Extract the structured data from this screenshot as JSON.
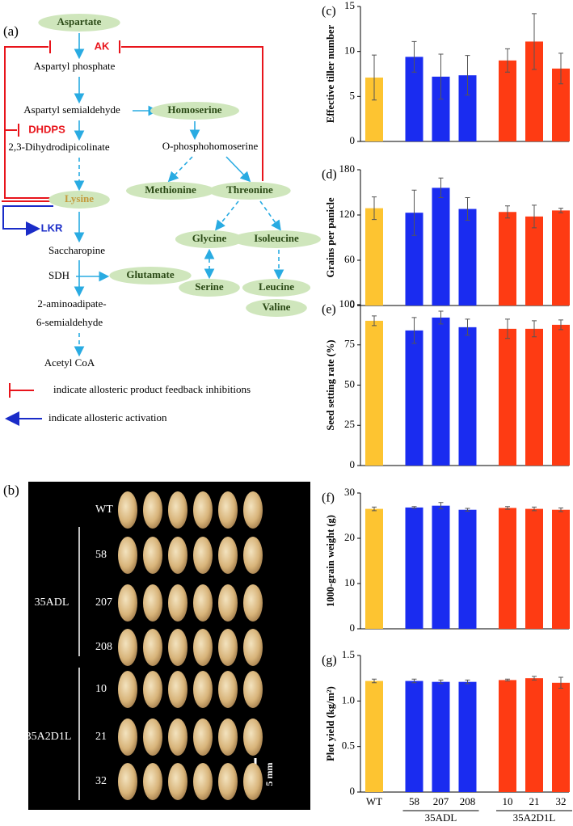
{
  "panels": [
    "(a)",
    "(b)"
  ],
  "pathway": {
    "nodes": [
      "Aspartate",
      "Aspartyl phosphate",
      "Aspartyl semialdehyde",
      "Homoserine",
      "2,3-Dihydrodipicolinate",
      "O-phosphohomoserine",
      "Lysine",
      "Methionine",
      "Threonine",
      "Glycine",
      "Isoleucine",
      "Saccharopine",
      "SDH",
      "Glutamate",
      "Serine",
      "Leucine",
      "Valine",
      "2-aminoadipate-",
      "6-semialdehyde",
      "Acetyl CoA"
    ],
    "enzymes": [
      "AK",
      "DHDPS",
      "LKR"
    ],
    "legend": [
      "indicate allosteric product feedback inhibitions",
      "indicate allosteric activation"
    ]
  },
  "photo": {
    "row_labels": [
      "WT",
      "58",
      "207",
      "208",
      "10",
      "21",
      "32"
    ],
    "group_labels": [
      "35ADL",
      "35A2D1L"
    ],
    "scale": "5 mm"
  },
  "chart_data": [
    {
      "type": "bar",
      "panel": "(c)",
      "y_label": "Effective tiller number",
      "values": [
        7.1,
        9.4,
        7.2,
        7.35,
        9.0,
        11.1,
        8.1
      ],
      "errors": [
        2.5,
        1.7,
        2.5,
        2.2,
        1.3,
        3.1,
        1.7
      ],
      "colors": [
        "#fdc431",
        "#1a2cf0",
        "#1a2cf0",
        "#1a2cf0",
        "#fe3b13",
        "#fe3b13",
        "#fe3b13"
      ],
      "ylim": [
        0,
        15
      ],
      "yticks": [
        0,
        5,
        10,
        15
      ]
    },
    {
      "type": "bar",
      "panel": "(d)",
      "y_label": "Grains per panicle",
      "values": [
        129,
        123,
        156,
        128,
        124,
        118,
        126
      ],
      "errors": [
        15,
        30,
        13,
        15,
        8,
        15,
        3
      ],
      "colors": [
        "#fdc431",
        "#1a2cf0",
        "#1a2cf0",
        "#1a2cf0",
        "#fe3b13",
        "#fe3b13",
        "#fe3b13"
      ],
      "ylim": [
        0,
        180
      ],
      "yticks": [
        0,
        60,
        120,
        180
      ]
    },
    {
      "type": "bar",
      "panel": "(e)",
      "y_label": "Seed setting rate (%)",
      "values": [
        90,
        84,
        92,
        86,
        85,
        85,
        87.5
      ],
      "errors": [
        3,
        8,
        4,
        5,
        6,
        5,
        3
      ],
      "colors": [
        "#fdc431",
        "#1a2cf0",
        "#1a2cf0",
        "#1a2cf0",
        "#fe3b13",
        "#fe3b13",
        "#fe3b13"
      ],
      "ylim": [
        0,
        100
      ],
      "yticks": [
        0,
        25,
        50,
        75,
        100
      ]
    },
    {
      "type": "bar",
      "panel": "(f)",
      "y_label": "1000-grain weight (g)",
      "values": [
        26.5,
        26.8,
        27.2,
        26.3,
        26.7,
        26.5,
        26.3
      ],
      "errors": [
        0.4,
        0.2,
        0.7,
        0.3,
        0.3,
        0.4,
        0.4
      ],
      "colors": [
        "#fdc431",
        "#1a2cf0",
        "#1a2cf0",
        "#1a2cf0",
        "#fe3b13",
        "#fe3b13",
        "#fe3b13"
      ],
      "ylim": [
        0,
        30
      ],
      "yticks": [
        0,
        10,
        20,
        30
      ]
    },
    {
      "type": "bar",
      "panel": "(g)",
      "y_label": "Plot yield (kg/m²)",
      "categories": [
        "WT",
        "58",
        "207",
        "208",
        "10",
        "21",
        "32"
      ],
      "groups": [
        "35ADL",
        "35A2D1L"
      ],
      "values": [
        1.22,
        1.22,
        1.21,
        1.21,
        1.23,
        1.25,
        1.2
      ],
      "errors": [
        0.02,
        0.02,
        0.02,
        0.02,
        0.01,
        0.02,
        0.06
      ],
      "colors": [
        "#fdc431",
        "#1a2cf0",
        "#1a2cf0",
        "#1a2cf0",
        "#fe3b13",
        "#fe3b13",
        "#fe3b13"
      ],
      "ylim": [
        0,
        1.5
      ],
      "yticks": [
        0,
        0.5,
        {
          "value": 1,
          "label": "1.0"
        },
        1.5
      ]
    }
  ]
}
